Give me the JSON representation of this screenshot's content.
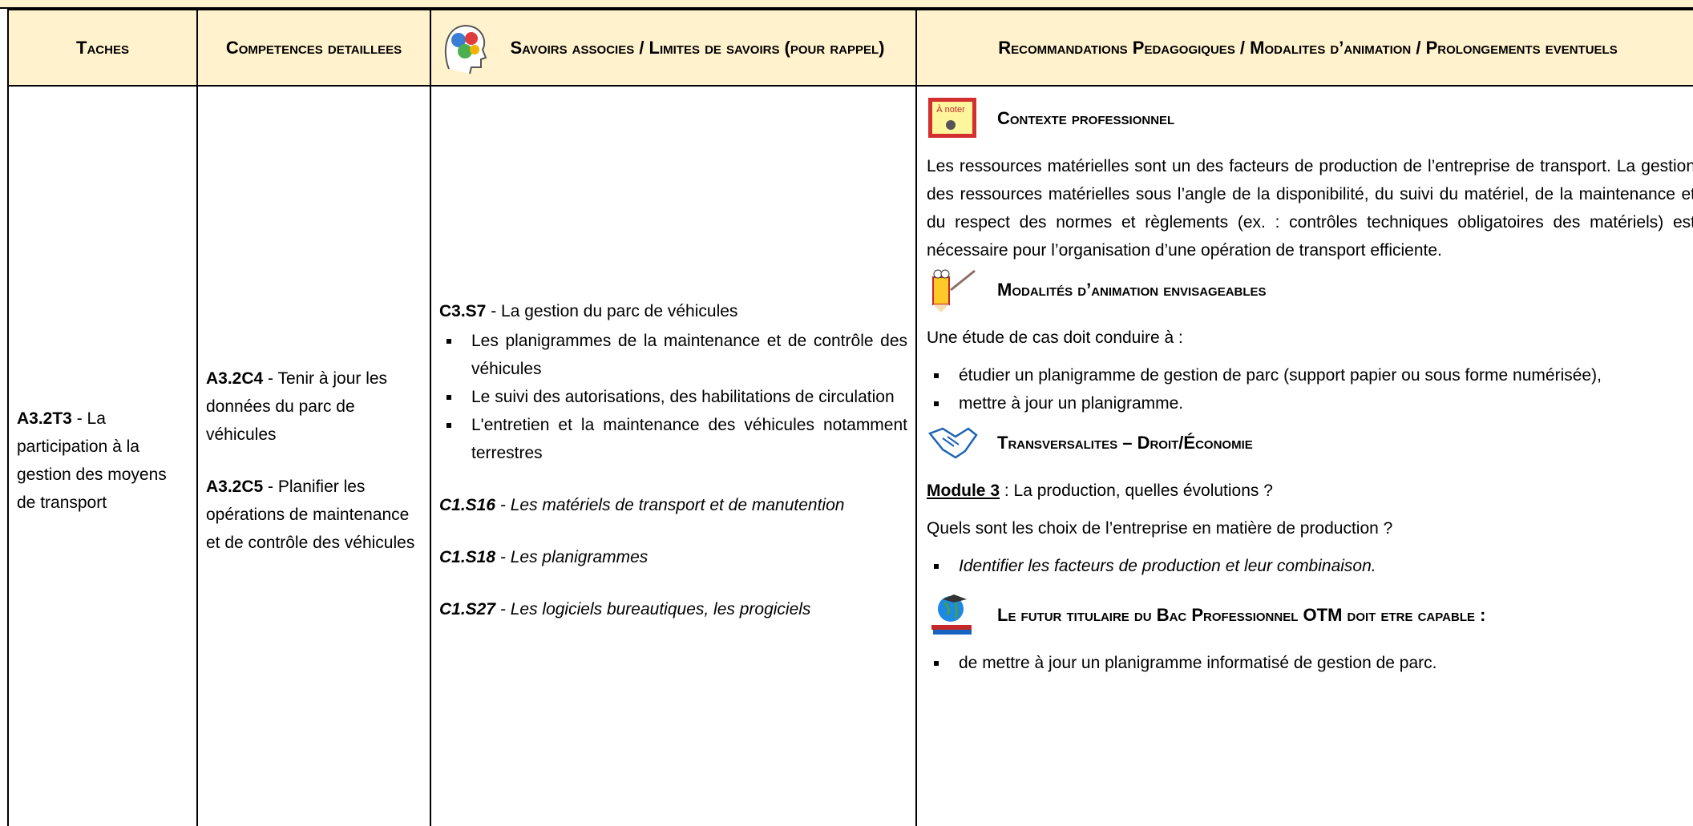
{
  "header": {
    "tasks": "Taches",
    "competences": "Competences detaillees",
    "savoirs": "Savoirs associes / Limites de savoirs (pour rappel)",
    "recommandations": "Recommandations Pedagogiques / Modalites d’animation / Prolongements eventuels"
  },
  "task": {
    "code": "A3.2T3",
    "text": "- La participation à la gestion des moyens de transport"
  },
  "competences": [
    {
      "code": "A3.2C4",
      "text": "- Tenir à jour les données du parc de véhicules"
    },
    {
      "code": "A3.2C5",
      "text": "- Planifier les opérations de maintenance et de contrôle des véhicules"
    }
  ],
  "savoirs": {
    "main": {
      "code": "C3.S7",
      "text": "- La gestion du parc de véhicules",
      "items": [
        "Les planigrammes de la maintenance et de contrôle des véhicules",
        "Le suivi des autorisations, des habilitations de circulation",
        "L'entretien et la maintenance des véhicules notamment terrestres"
      ]
    },
    "others": [
      {
        "code": "C1.S16",
        "text": "- Les matériels de transport et de manutention"
      },
      {
        "code": "C1.S18",
        "text": "- Les planigrammes"
      },
      {
        "code": "C1.S27",
        "text": "- Les logiciels bureautiques, les progiciels"
      }
    ]
  },
  "recommandations": {
    "contexte": {
      "icon_text": "À noter",
      "heading": "Contexte professionnel",
      "paragraph": "Les ressources matérielles sont un des facteurs de production de l’entreprise de transport. La gestion des ressources matérielles sous l’angle de la disponibilité, du suivi du matériel, de la maintenance et du respect des normes et règlements (ex. : contrôles techniques obligatoires des matériels) est nécessaire pour l’organisation d’une opération de transport efficiente."
    },
    "modalites": {
      "heading": "Modalités d’animation envisageables",
      "intro": "Une étude de cas doit conduire à :",
      "items": [
        "étudier un planigramme de gestion de parc (support papier ou sous forme numérisée),",
        "mettre à jour un planigramme."
      ]
    },
    "transversalites": {
      "heading": "Transversalites – Droit/Économie",
      "module_label": "Module 3",
      "module_text": ": La production, quelles évolutions ?",
      "question": "Quels sont les choix de l’entreprise en matière de production ?",
      "items": [
        "Identifier les facteurs de production et leur combinaison."
      ]
    },
    "capacites": {
      "heading": "Le futur titulaire du Bac Professionnel",
      "heading_code": "OTM",
      "heading_end": "doit etre capable :",
      "items": [
        "de mettre à jour un planigramme informatisé de gestion de parc."
      ]
    }
  }
}
